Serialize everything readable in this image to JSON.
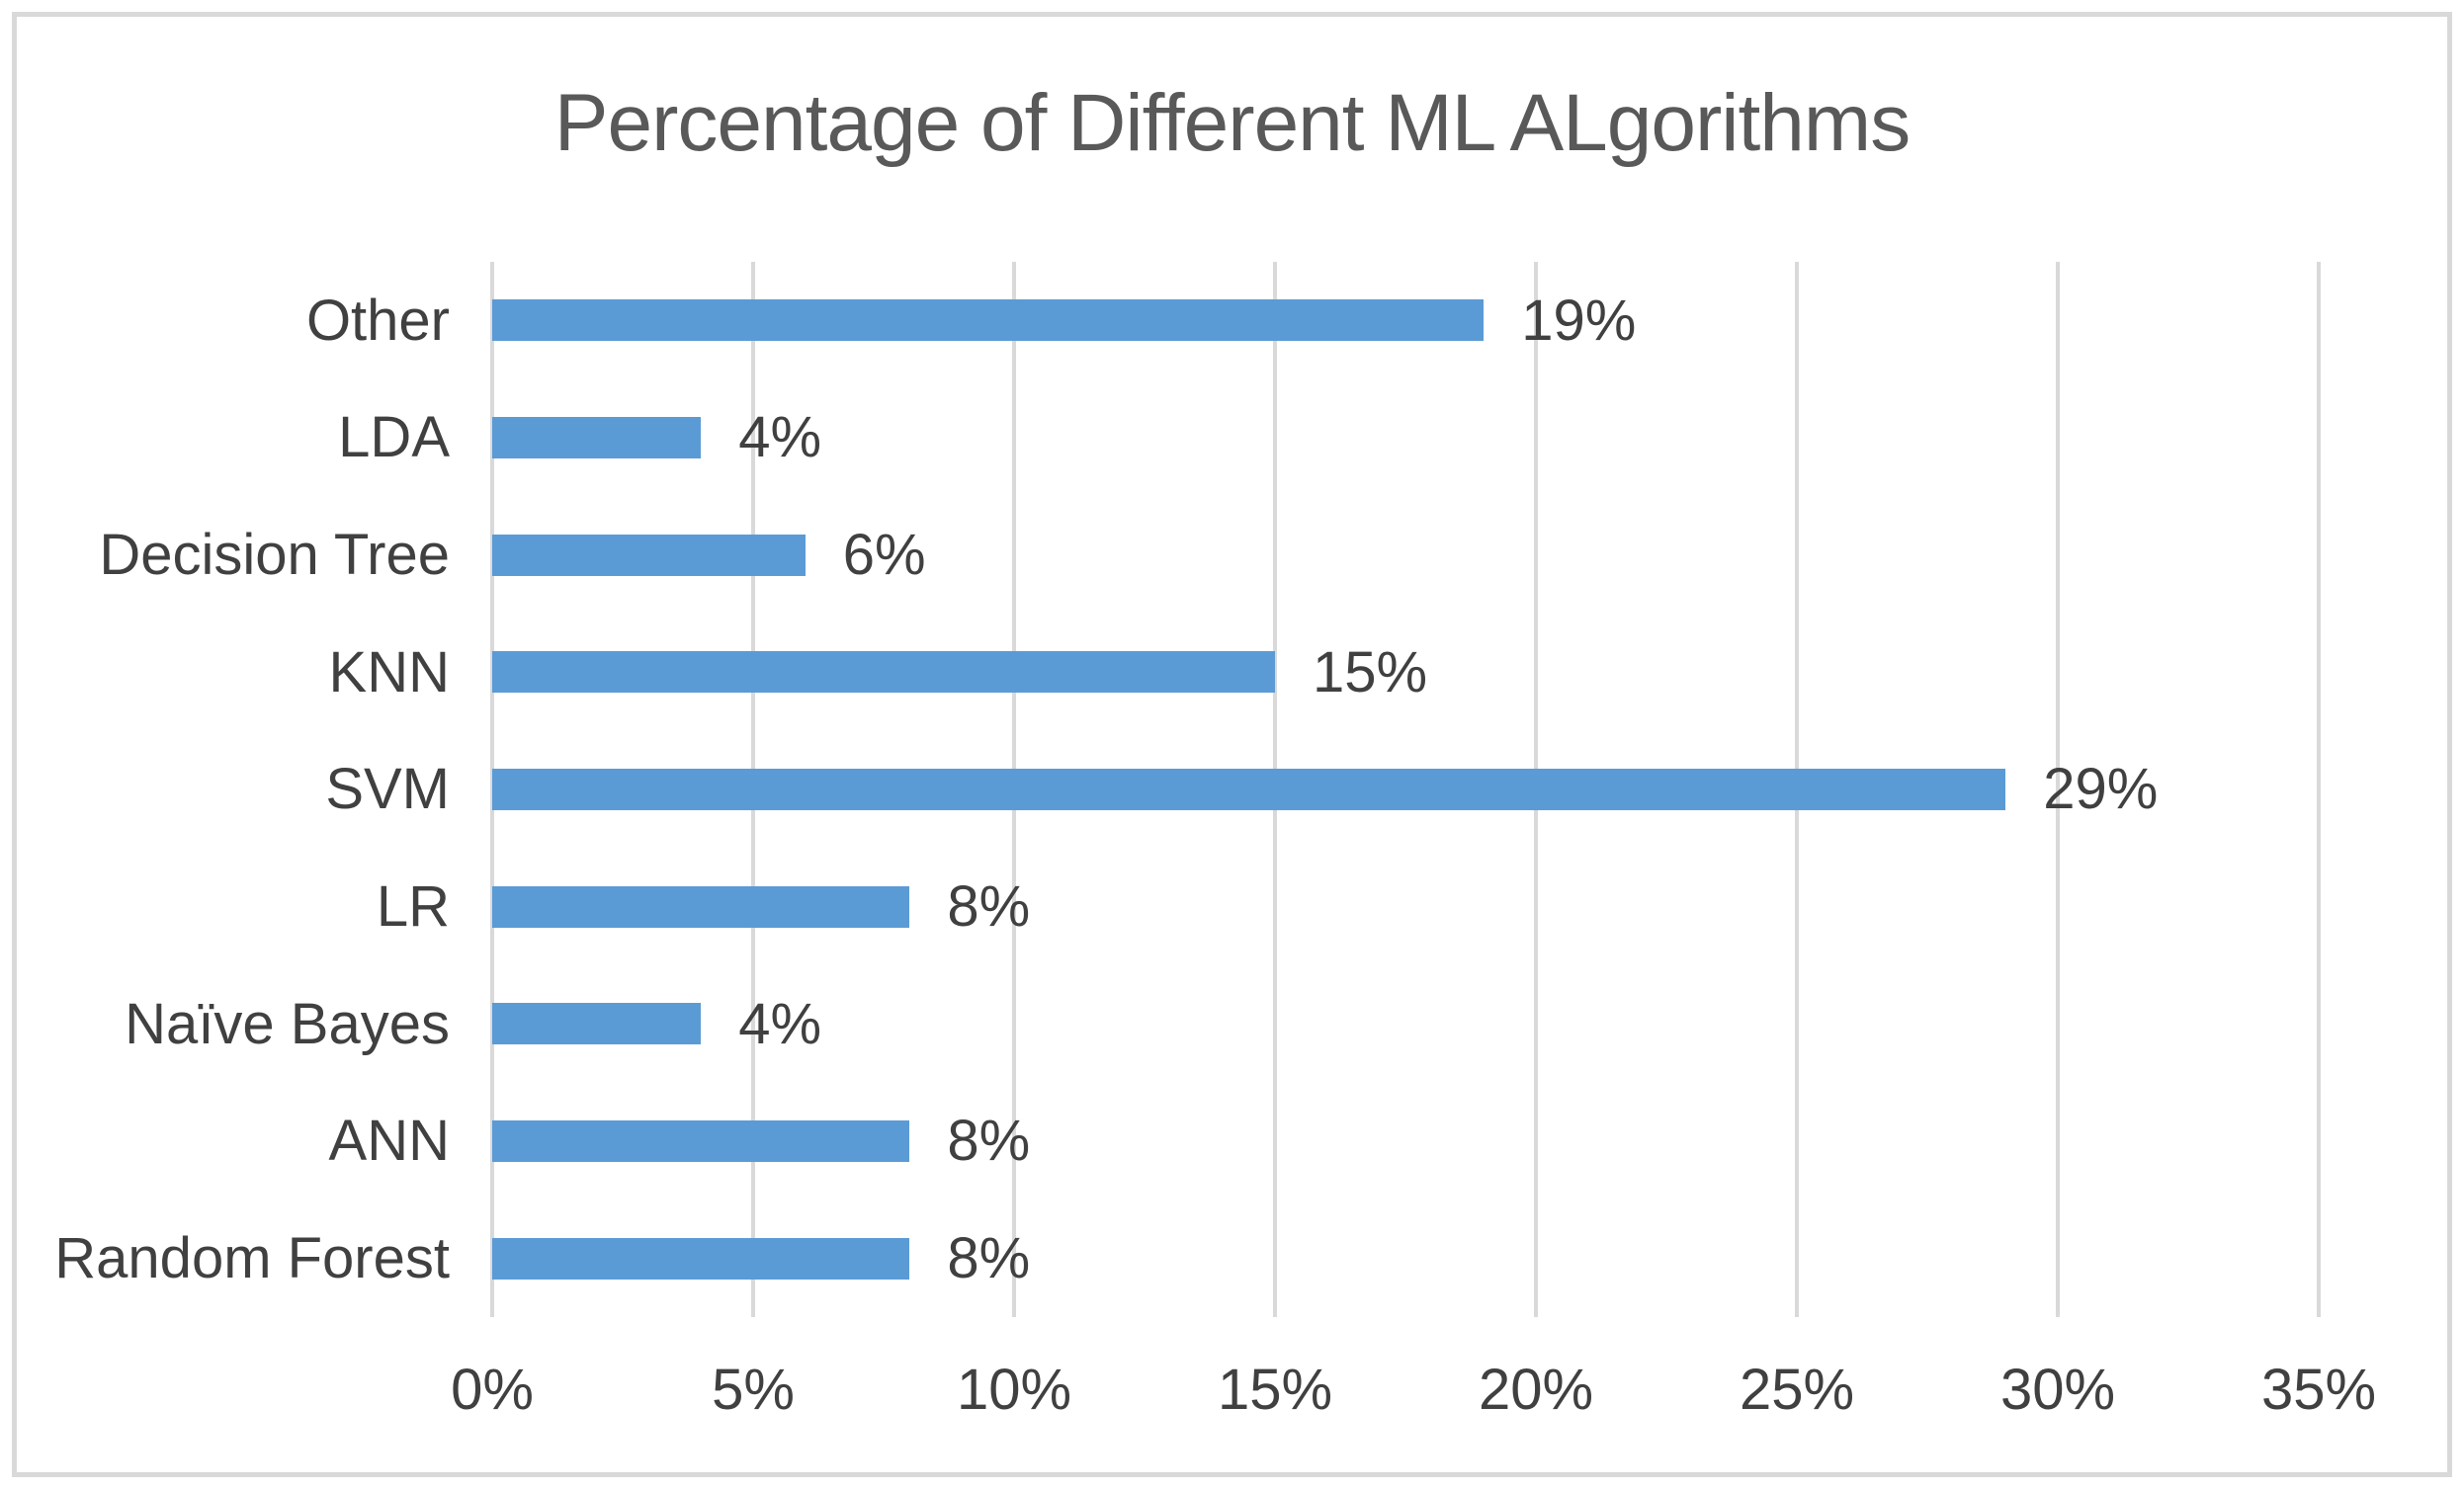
{
  "chart_data": {
    "type": "bar",
    "orientation": "horizontal",
    "title": "Percentage of Different ML ALgorithms",
    "categories": [
      "Other",
      "LDA",
      "Decision Tree",
      "KNN",
      "SVM",
      "LR",
      "Naïve Bayes",
      "ANN",
      "Random Forest"
    ],
    "values": [
      19,
      4,
      6,
      15,
      29,
      8,
      4,
      8,
      8
    ],
    "value_labels": [
      "19%",
      "4%",
      "6%",
      "15%",
      "29%",
      "8%",
      "4%",
      "8%",
      "8%"
    ],
    "x_tick_labels": [
      "0%",
      "5%",
      "10%",
      "15%",
      "20%",
      "25%",
      "30%",
      "35%"
    ],
    "x_tick_values": [
      0,
      5,
      10,
      15,
      20,
      25,
      30,
      35
    ],
    "xlim": [
      0,
      35
    ],
    "xlabel": "",
    "ylabel": "",
    "grid": "vertical-only",
    "legend": "none",
    "data_labels": "outside-end",
    "colors": {
      "bar": "#5b9bd5",
      "gridline": "#d9d9d9",
      "chart_border": "#d9d9d9",
      "title_text": "#595959",
      "label_text": "#404040",
      "background": "#ffffff"
    }
  }
}
